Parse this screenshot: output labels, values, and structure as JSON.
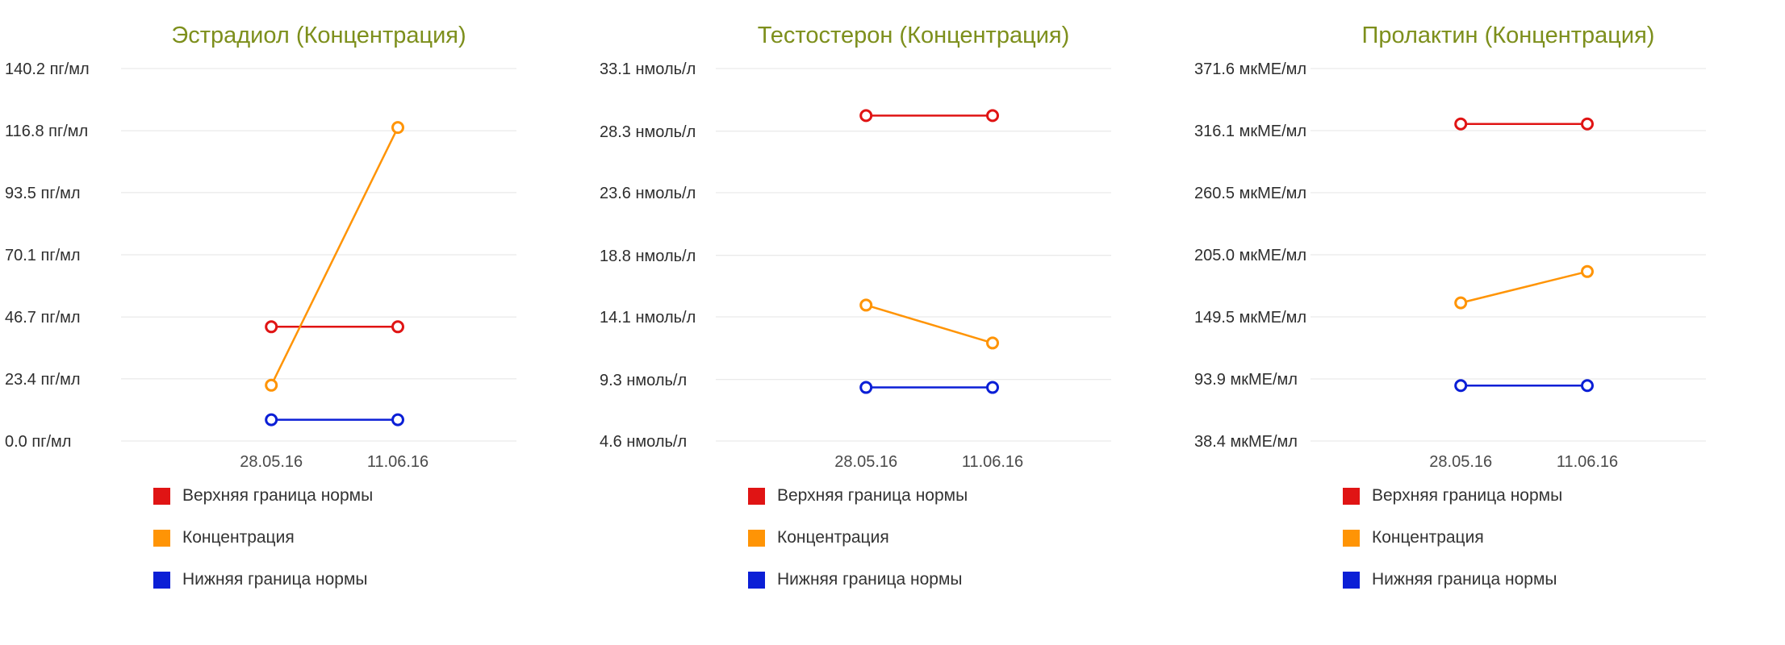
{
  "theme": {
    "background": "#ffffff",
    "title_color": "#7d8f1c",
    "gridline_color": "#e4e4e4",
    "ytick_label_color": "#2e2e2e",
    "xtick_label_color": "#4a4a4a",
    "legend_label_color": "#333333",
    "point_fill": "#ffffff"
  },
  "chart_data": [
    {
      "type": "line",
      "title": "Эстрадиол (Концентрация)",
      "unit": "пг/мл",
      "x": [
        "28.05.16",
        "11.06.16"
      ],
      "ytick_values": [
        140.2,
        116.8,
        93.5,
        70.1,
        46.7,
        23.4,
        0.0
      ],
      "ytick_labels": [
        "140.2 пг/мл",
        "116.8 пг/мл",
        "93.5 пг/мл",
        "70.1 пг/мл",
        "46.7 пг/мл",
        "23.4 пг/мл",
        "0.0 пг/мл"
      ],
      "ylim": [
        0.0,
        140.2
      ],
      "grid": true,
      "legend_position": "bottom-left",
      "series": [
        {
          "name": "Верхняя граница нормы",
          "color": "#e01414",
          "values": [
            43,
            43
          ]
        },
        {
          "name": "Концентрация",
          "color": "#ff9405",
          "values": [
            21,
            118
          ]
        },
        {
          "name": "Нижняя граница нормы",
          "color": "#0b1fd6",
          "values": [
            8,
            8
          ]
        }
      ]
    },
    {
      "type": "line",
      "title": "Тестостерон (Концентрация)",
      "unit": "нмоль/л",
      "x": [
        "28.05.16",
        "11.06.16"
      ],
      "ytick_values": [
        33.1,
        28.3,
        23.6,
        18.8,
        14.1,
        9.3,
        4.6
      ],
      "ytick_labels": [
        "33.1 нмоль/л",
        "28.3 нмоль/л",
        "23.6 нмоль/л",
        "18.8 нмоль/л",
        "14.1 нмоль/л",
        "9.3 нмоль/л",
        "4.6 нмоль/л"
      ],
      "ylim": [
        4.6,
        33.1
      ],
      "grid": true,
      "legend_position": "bottom-left",
      "series": [
        {
          "name": "Верхняя граница нормы",
          "color": "#e01414",
          "values": [
            29.5,
            29.5
          ]
        },
        {
          "name": "Концентрация",
          "color": "#ff9405",
          "values": [
            15.0,
            12.1
          ]
        },
        {
          "name": "Нижняя граница нормы",
          "color": "#0b1fd6",
          "values": [
            8.7,
            8.7
          ]
        }
      ]
    },
    {
      "type": "line",
      "title": "Пролактин (Концентрация)",
      "unit": "мкМЕ/мл",
      "x": [
        "28.05.16",
        "11.06.16"
      ],
      "ytick_values": [
        371.6,
        316.1,
        260.5,
        205.0,
        149.5,
        93.9,
        38.4
      ],
      "ytick_labels": [
        "371.6 мкМЕ/мл",
        "316.1 мкМЕ/мл",
        "260.5 мкМЕ/мл",
        "205.0 мкМЕ/мл",
        "149.5 мкМЕ/мл",
        "93.9 мкМЕ/мл",
        "38.4 мкМЕ/мл"
      ],
      "ylim": [
        38.4,
        371.6
      ],
      "grid": true,
      "legend_position": "bottom-left",
      "series": [
        {
          "name": "Верхняя граница нормы",
          "color": "#e01414",
          "values": [
            322,
            322
          ]
        },
        {
          "name": "Концентрация",
          "color": "#ff9405",
          "values": [
            162,
            190
          ]
        },
        {
          "name": "Нижняя граница нормы",
          "color": "#0b1fd6",
          "values": [
            88,
            88
          ]
        }
      ]
    }
  ]
}
